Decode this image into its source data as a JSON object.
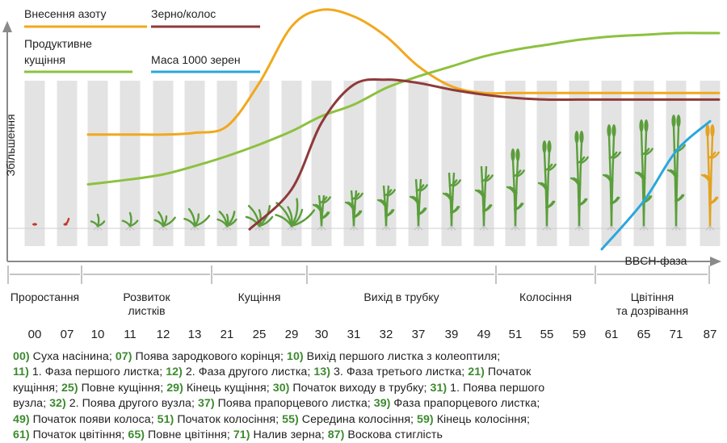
{
  "legend": {
    "nitrogen": "Внесення азоту",
    "tillering_line1": "Продуктивне",
    "tillering_line2": "кущіння",
    "grain_ear": "Зерно/колос",
    "thousand_mass": "Маса 1000 зерен"
  },
  "axes": {
    "y_label": "Збільшення",
    "x_label": "BBCH-фаза"
  },
  "colors": {
    "nitrogen": "#f2a81d",
    "tillering": "#8dc13f",
    "grain_ear": "#8e3a3a",
    "thousand_mass": "#2aa7dc",
    "column": "#e3e3e3",
    "code": "#3d8a2f",
    "plant": "#5a9e3a",
    "plant_ripe": "#e3a21f"
  },
  "phases": [
    {
      "label": "Проростання",
      "label2": ""
    },
    {
      "label": "Розвиток",
      "label2": "листків"
    },
    {
      "label": "Кущіння",
      "label2": ""
    },
    {
      "label": "Вихід в трубку",
      "label2": ""
    },
    {
      "label": "Колосіння",
      "label2": ""
    },
    {
      "label": "Цвітіння",
      "label2": "та дозрівання"
    }
  ],
  "codes": [
    "00",
    "07",
    "10",
    "11",
    "12",
    "13",
    "21",
    "25",
    "29",
    "30",
    "31",
    "32",
    "37",
    "39",
    "49",
    "51",
    "55",
    "59",
    "61",
    "65",
    "71",
    "87"
  ],
  "chart_data": {
    "type": "line",
    "x": [
      "00",
      "07",
      "10",
      "11",
      "12",
      "13",
      "21",
      "25",
      "29",
      "30",
      "31",
      "32",
      "37",
      "39",
      "49",
      "51",
      "55",
      "59",
      "61",
      "65",
      "71",
      "87"
    ],
    "xlabel": "BBCH-фаза",
    "ylabel": "Збільшення",
    "series": [
      {
        "name": "Внесення азоту",
        "start": "10",
        "values": [
          0.55,
          0.55,
          0.55,
          0.55,
          0.55,
          0.56,
          0.6,
          0.86,
          1.2,
          1.3,
          1.26,
          1.14,
          0.96,
          0.84,
          0.8,
          0.8,
          0.8,
          0.8,
          0.8,
          0.8,
          0.8,
          0.8
        ]
      },
      {
        "name": "Продуктивне кущіння",
        "start": "10",
        "values": [
          0.22,
          0.23,
          0.25,
          0.28,
          0.31,
          0.36,
          0.42,
          0.49,
          0.57,
          0.66,
          0.73,
          0.83,
          0.9,
          0.96,
          1.02,
          1.06,
          1.09,
          1.12,
          1.14,
          1.15,
          1.16,
          1.16
        ]
      },
      {
        "name": "Зерно/колос",
        "start": "25",
        "values": [
          0.0,
          0.0,
          0.0,
          0.0,
          0.0,
          0.0,
          0.0,
          -0.02,
          0.22,
          0.62,
          0.85,
          0.88,
          0.86,
          0.82,
          0.79,
          0.77,
          0.76,
          0.76,
          0.76,
          0.76,
          0.76,
          0.76
        ]
      },
      {
        "name": "Маса 1000 зерен",
        "start": "61",
        "values": [
          null,
          null,
          null,
          null,
          null,
          null,
          null,
          null,
          null,
          null,
          null,
          null,
          null,
          null,
          null,
          null,
          null,
          null,
          -0.14,
          0.15,
          0.45,
          0.63
        ]
      }
    ]
  },
  "description": [
    [
      {
        "c": "00)",
        "t": " Суха насінина; "
      },
      {
        "c": "07)",
        "t": " Поява зародкового корінця; "
      },
      {
        "c": "10)",
        "t": " Вихід першого листка з колеоптиля;"
      }
    ],
    [
      {
        "c": "11)",
        "t": " 1. Фаза першого листка; "
      },
      {
        "c": "12)",
        "t": " 2. Фаза другого листка; "
      },
      {
        "c": "13)",
        "t": " 3. Фаза третього листка; "
      },
      {
        "c": "21)",
        "t": " Початок"
      }
    ],
    [
      {
        "c": "",
        "t": "кущіння; "
      },
      {
        "c": "25)",
        "t": " Повне кущіння; "
      },
      {
        "c": "29)",
        "t": " Кінець кущіння; "
      },
      {
        "c": "30)",
        "t": " Початок виходу в трубку; "
      },
      {
        "c": "31)",
        "t": " 1. Поява першого"
      }
    ],
    [
      {
        "c": "",
        "t": "вузла; "
      },
      {
        "c": "32)",
        "t": " 2. Поява другого вузла; "
      },
      {
        "c": "37)",
        "t": " Поява прапорцевого листка; "
      },
      {
        "c": "39)",
        "t": " Фаза прапорцевого листка;"
      }
    ],
    [
      {
        "c": "49)",
        "t": " Початок появи колоса; "
      },
      {
        "c": "51)",
        "t": " Початок колосіння; "
      },
      {
        "c": "55)",
        "t": " Середина колосіння; "
      },
      {
        "c": "59)",
        "t": " Кінець колосіння;"
      }
    ],
    [
      {
        "c": "61)",
        "t": " Початок цвітіння; "
      },
      {
        "c": "65)",
        "t": " Повне цвітіння; "
      },
      {
        "c": "71)",
        "t": " Налив зерна; "
      },
      {
        "c": "87)",
        "t": " Воскова стиглість"
      }
    ]
  ]
}
